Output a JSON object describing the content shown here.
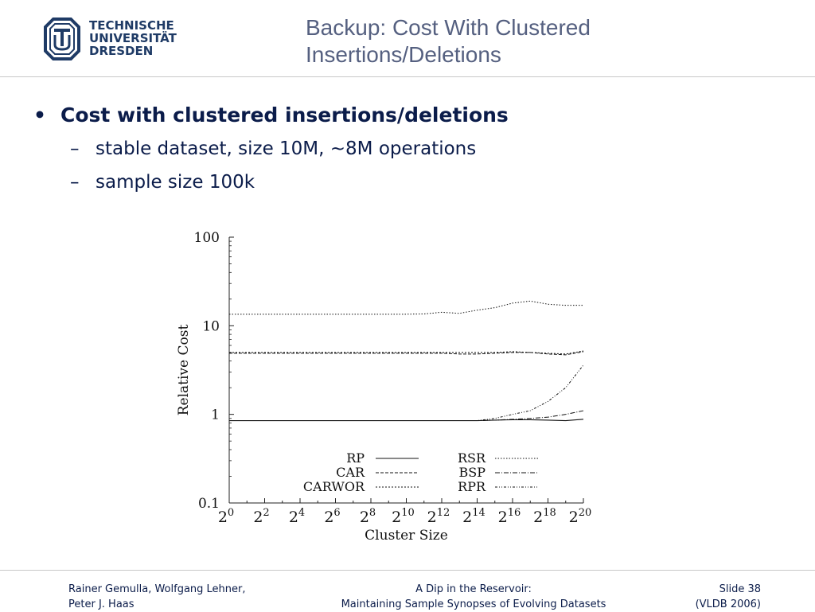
{
  "header": {
    "logo_lines": [
      "TECHNISCHE",
      "UNIVERSITÄT",
      "DRESDEN"
    ],
    "title_line1": "Backup: Cost With Clustered",
    "title_line2": "Insertions/Deletions"
  },
  "content": {
    "bullet": "Cost with clustered insertions/deletions",
    "bullet_marker": "•",
    "sub_marker": "–",
    "subitems": [
      "stable dataset, size 10M, ~8M operations",
      "sample size 100k"
    ]
  },
  "chart_data": {
    "type": "line",
    "title": "",
    "xlabel": "Cluster Size",
    "ylabel": "Relative Cost",
    "yscale": "log",
    "ylim": [
      0.1,
      100
    ],
    "ytick_labels": [
      "100",
      "10",
      "1",
      "0.1"
    ],
    "yticks": [
      100,
      10,
      1,
      0.1
    ],
    "x_exponents": [
      0,
      2,
      4,
      6,
      8,
      10,
      12,
      14,
      16,
      18,
      20
    ],
    "x_base": "2",
    "x": [
      0,
      1,
      2,
      3,
      4,
      5,
      6,
      7,
      8,
      9,
      10,
      11,
      12,
      13,
      14,
      15,
      16,
      17,
      18,
      19,
      20
    ],
    "legend_position": "bottom",
    "series": [
      {
        "name": "RP",
        "dash": "",
        "width": 1.1,
        "values": [
          0.85,
          0.85,
          0.85,
          0.85,
          0.85,
          0.85,
          0.85,
          0.85,
          0.85,
          0.85,
          0.85,
          0.85,
          0.85,
          0.85,
          0.85,
          0.86,
          0.87,
          0.87,
          0.86,
          0.85,
          0.88
        ]
      },
      {
        "name": "RSR",
        "dash": "1.5 2",
        "width": 1.0,
        "values": [
          13.5,
          13.5,
          13.5,
          13.5,
          13.5,
          13.5,
          13.5,
          13.5,
          13.5,
          13.5,
          13.5,
          13.6,
          14.2,
          13.8,
          15.0,
          16.0,
          18.0,
          19.0,
          17.5,
          17.0,
          17.0
        ]
      },
      {
        "name": "CAR",
        "dash": "4 2",
        "width": 1.0,
        "values": [
          4.9,
          4.9,
          4.9,
          4.9,
          4.9,
          4.9,
          4.9,
          4.9,
          4.9,
          4.9,
          4.9,
          4.9,
          4.9,
          4.8,
          4.8,
          4.9,
          5.0,
          5.0,
          4.8,
          4.7,
          5.1
        ]
      },
      {
        "name": "BSP",
        "dash": "6 2 1 2",
        "width": 1.0,
        "values": [
          0.85,
          0.85,
          0.85,
          0.85,
          0.85,
          0.85,
          0.85,
          0.85,
          0.85,
          0.85,
          0.85,
          0.85,
          0.85,
          0.85,
          0.85,
          0.86,
          0.88,
          0.9,
          0.93,
          1.0,
          1.1
        ]
      },
      {
        "name": "CARWOR",
        "dash": "2 2",
        "width": 1.0,
        "values": [
          5.0,
          5.0,
          5.0,
          5.0,
          5.0,
          5.0,
          5.0,
          5.0,
          5.0,
          5.0,
          5.0,
          5.0,
          5.0,
          5.0,
          5.0,
          5.0,
          5.1,
          5.0,
          4.9,
          4.8,
          5.2
        ]
      },
      {
        "name": "RPR",
        "dash": "3 2 1 2 1 2",
        "width": 1.0,
        "values": [
          0.85,
          0.85,
          0.85,
          0.85,
          0.85,
          0.85,
          0.85,
          0.85,
          0.85,
          0.85,
          0.85,
          0.85,
          0.85,
          0.85,
          0.85,
          0.9,
          1.0,
          1.1,
          1.4,
          2.0,
          3.6
        ]
      }
    ]
  },
  "footer": {
    "left_line1": "Rainer Gemulla, Wolfgang Lehner,",
    "left_line2": "Peter J. Haas",
    "center_line1": "A Dip in the Reservoir:",
    "center_line2": "Maintaining Sample Synopses of Evolving Datasets",
    "right_line1": "Slide 38",
    "right_line2": "(VLDB 2006)"
  }
}
